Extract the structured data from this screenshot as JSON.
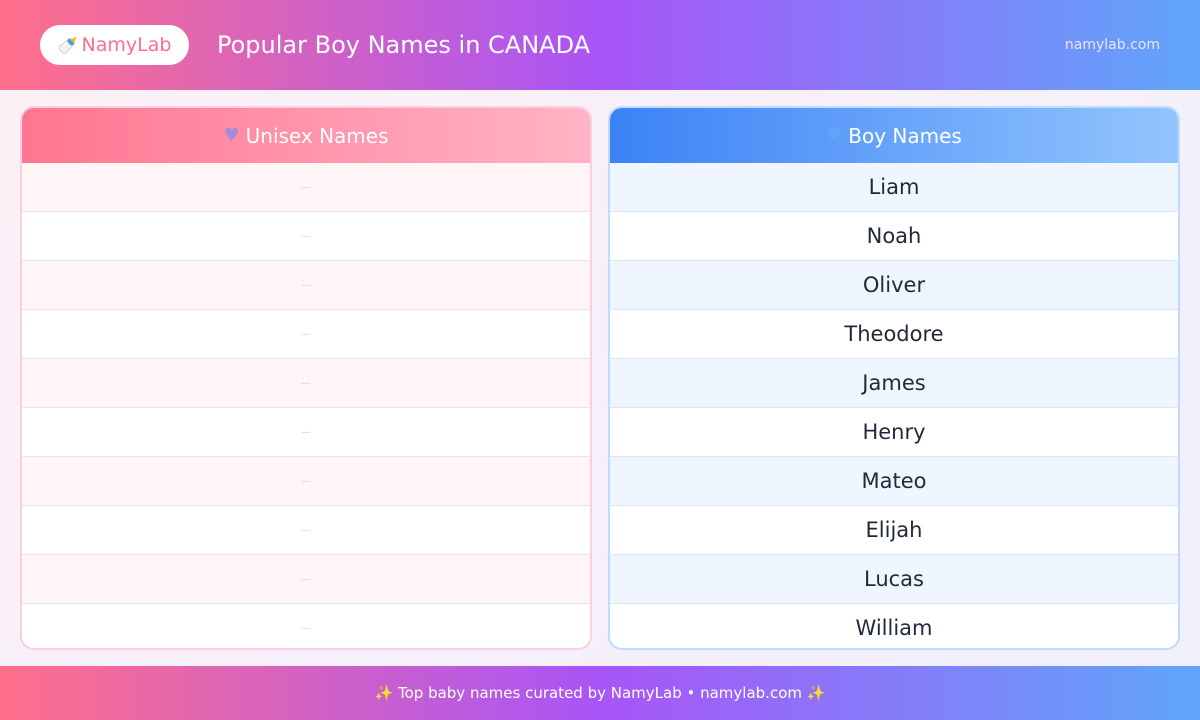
{
  "header": {
    "logo_icon": "baby-bottle-icon",
    "logo_emoji": "🍼",
    "logo_text": "NamyLab",
    "title": "Popular Boy Names in CANADA",
    "site": "namylab.com"
  },
  "colors": {
    "pink": "#ff6f8a",
    "purple": "#a855f7",
    "blue": "#60a5fa"
  },
  "unisex": {
    "icon": "purple-heart-icon",
    "emoji": "💜",
    "title": "Unisex Names",
    "items": [
      "—",
      "—",
      "—",
      "—",
      "—",
      "—",
      "—",
      "—",
      "—",
      "—"
    ]
  },
  "boys": {
    "icon": "blue-heart-icon",
    "emoji": "💙",
    "title": "Boy Names",
    "items": [
      "Liam",
      "Noah",
      "Oliver",
      "Theodore",
      "James",
      "Henry",
      "Mateo",
      "Elijah",
      "Lucas",
      "William"
    ]
  },
  "footer": {
    "text": "✨ Top baby names curated by NamyLab • namylab.com ✨"
  }
}
